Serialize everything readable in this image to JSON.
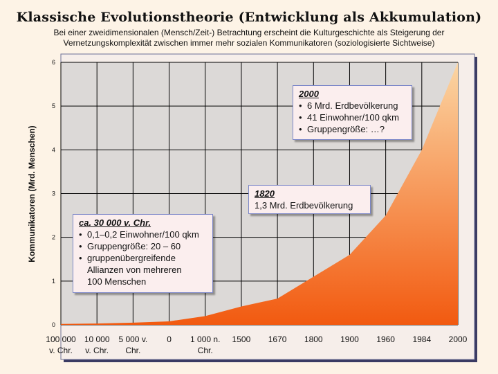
{
  "title": "Klassische Evolutionstheorie (Entwicklung als Akkumulation)",
  "subtitle": "Bei einer zweidimensionalen (Mensch/Zeit-) Betrachtung erscheint die Kulturgeschichte als Steigerung der Vernetzungskomplexität zwischen immer mehr sozialen Kommunikatoren (soziologisierte Sichtweise)",
  "colors": {
    "area_top": "#fbd6a4",
    "area_bottom": "#f25a10",
    "plot_bg": "#dcd9d7",
    "grid": "#000000"
  },
  "chart_data": {
    "type": "area",
    "title": "",
    "xlabel": "",
    "ylabel": "Kommunikatoren (Mrd. Menschen)",
    "ylim": [
      0,
      6
    ],
    "y_ticks": [
      "0",
      "1",
      "2",
      "3",
      "4",
      "5",
      "6"
    ],
    "grid": true,
    "legend": "none",
    "categories": [
      [
        "100 000",
        "v. Chr."
      ],
      [
        "10 000",
        "v. Chr."
      ],
      [
        "5 000 v.",
        "Chr."
      ],
      [
        "0"
      ],
      [
        "1 000 n.",
        "Chr."
      ],
      [
        "1500"
      ],
      [
        "1670"
      ],
      [
        "1800"
      ],
      [
        "1900"
      ],
      [
        "1960"
      ],
      [
        "1984"
      ],
      [
        "2000"
      ]
    ],
    "series": [
      {
        "values": [
          0.02,
          0.03,
          0.05,
          0.08,
          0.2,
          0.42,
          0.6,
          1.1,
          1.6,
          2.5,
          4.0,
          6.0
        ]
      }
    ]
  },
  "annotations": {
    "a2000": {
      "head": "2000",
      "items": [
        "6 Mrd. Erdbevölkerung",
        "41 Einwohner/100 qkm",
        "Gruppengröße: …?"
      ]
    },
    "a1820": {
      "head": "1820",
      "text": "1,3 Mrd. Erdbevölkerung"
    },
    "a30000": {
      "head": "ca. 30 000 v. Chr.",
      "items": [
        "0,1–0,2 Einwohner/100 qkm",
        "Gruppengröße: 20 – 60"
      ],
      "item3_line1": "gruppenübergreifende",
      "item3_line2": "Allianzen von mehreren",
      "item3_line3": "100 Menschen"
    }
  }
}
